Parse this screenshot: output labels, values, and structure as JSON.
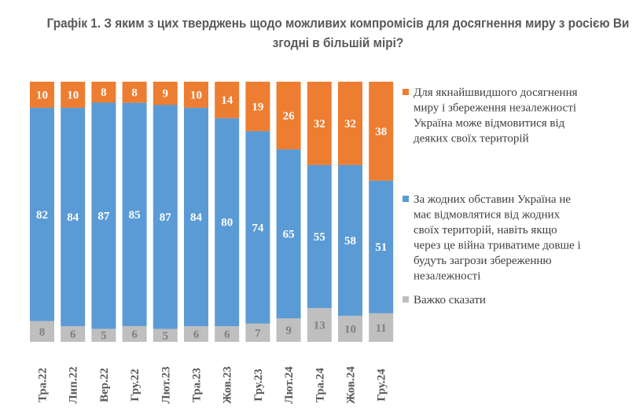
{
  "chart_data": {
    "type": "bar",
    "stacked": true,
    "title": "Графік 1. З яким з цих тверджень щодо можливих компромісів для досягнення миру з росією Ви згодні в більшій мірі?",
    "categories": [
      "Тра.22",
      "Лип.22",
      "Вер.22",
      "Гру.22",
      "Лют.23",
      "Тра.23",
      "Жов.23",
      "Гру.23",
      "Лют.24",
      "Тра.24",
      "Жов.24",
      "Гру.24"
    ],
    "series": [
      {
        "name": "Важко сказати",
        "color": "#BFBFBF",
        "label_color": "#808080",
        "values": [
          8,
          6,
          5,
          6,
          5,
          6,
          6,
          7,
          9,
          13,
          10,
          11
        ]
      },
      {
        "name": "За жодних обставин Україна не має відмовлятися від жодних своїх територій, навіть якщо через це війна триватиме довше і будуть загрози збереженню незалежності",
        "color": "#5B9BD5",
        "label_color": "#FFFFFF",
        "values": [
          82,
          84,
          87,
          85,
          87,
          84,
          80,
          74,
          65,
          55,
          58,
          51
        ]
      },
      {
        "name": "Для якнайшвидшого досягнення миру і збереження незалежності Україна може відмовитися від деяких своїх територій",
        "color": "#ED7D31",
        "label_color": "#FFFFFF",
        "values": [
          10,
          10,
          8,
          8,
          9,
          10,
          14,
          19,
          26,
          32,
          32,
          38
        ]
      }
    ],
    "legend": {
      "position": "right",
      "order": [
        2,
        1,
        0
      ],
      "lines": [
        [
          "Для якнайшвидшого досягнення",
          "миру і збереження незалежності",
          "Україна може відмовитися від",
          "деяких своїх територій"
        ],
        [
          "За жодних обставин Україна не",
          "має відмовлятися від жодних",
          "своїх територій, навіть якщо",
          "через це війна триватиме довше і",
          "будуть загрози збереженню",
          "незалежності"
        ],
        [
          "Важко сказати"
        ]
      ]
    },
    "ylim": [
      0,
      100
    ],
    "grid": false
  }
}
